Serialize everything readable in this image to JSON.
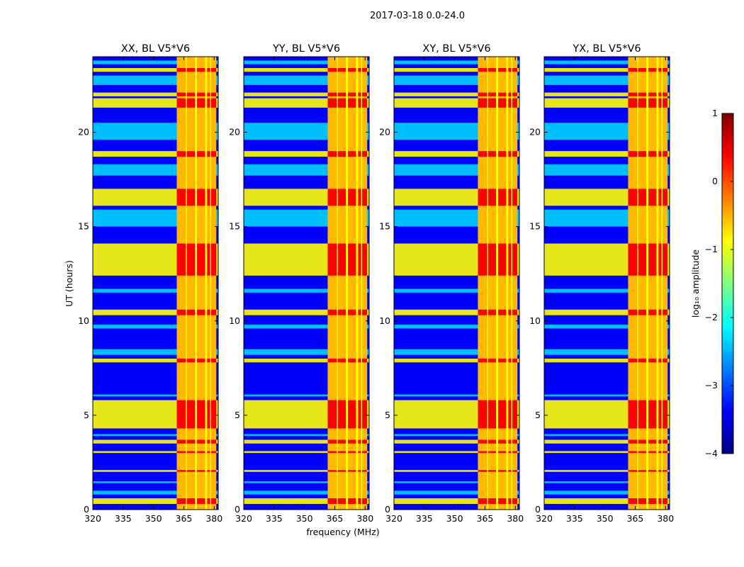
{
  "chart_data": {
    "type": "heatmap",
    "suptitle": "2017-03-18 0.0-24.0",
    "panels": [
      {
        "title": "XX, BL V5*V6",
        "id": "xx"
      },
      {
        "title": "YY, BL V5*V6",
        "id": "yy"
      },
      {
        "title": "XY, BL V5*V6",
        "id": "xy"
      },
      {
        "title": "YX, BL V5*V6",
        "id": "yx"
      }
    ],
    "xlabel": "frequency (MHz)",
    "ylabel": "UT (hours)",
    "xlim": [
      320,
      382
    ],
    "ylim": [
      0,
      24
    ],
    "xticks": [
      320,
      335,
      350,
      365,
      380
    ],
    "xtick_labels": [
      "320",
      "335",
      "350",
      "365",
      "380"
    ],
    "yticks": [
      0,
      5,
      10,
      15,
      20
    ],
    "ytick_labels": [
      "0",
      "5",
      "10",
      "15",
      "20"
    ],
    "colorbar": {
      "label": "log₁₀ amplitude",
      "range": [
        -4,
        1
      ],
      "ticks": [
        1,
        0,
        -1,
        -2,
        -3,
        -4
      ],
      "tick_labels": [
        "1",
        "0",
        "−1",
        "−2",
        "−3",
        "−4"
      ],
      "colormap": "jet",
      "colors": [
        "#00007f",
        "#0000ff",
        "#007fff",
        "#00ffff",
        "#7fff7f",
        "#ffff00",
        "#ff7f00",
        "#ff0000",
        "#7f0000"
      ]
    },
    "background_level": -3.5,
    "rfi_band_mhz": [
      361.5,
      381
    ],
    "rfi_channels_mhz": [
      [
        361.5,
        366
      ],
      [
        366.5,
        370.5
      ],
      [
        371.5,
        375.5
      ],
      [
        376.5,
        378
      ],
      [
        378.5,
        381
      ]
    ],
    "bright_time_bands_hours": [
      [
        0.3,
        0.6
      ],
      [
        2.0,
        2.1
      ],
      [
        3.0,
        3.1
      ],
      [
        3.5,
        3.7
      ],
      [
        4.3,
        5.8
      ],
      [
        7.8,
        8.0
      ],
      [
        10.3,
        10.6
      ],
      [
        12.4,
        14.1
      ],
      [
        16.1,
        17.0
      ],
      [
        18.7,
        19.0
      ],
      [
        21.3,
        21.8
      ],
      [
        21.9,
        22.1
      ],
      [
        23.2,
        23.4
      ]
    ],
    "faint_time_bands_hours": [
      [
        0.8,
        1.0
      ],
      [
        1.4,
        1.5
      ],
      [
        3.9,
        4.0
      ],
      [
        6.0,
        6.1
      ],
      [
        8.2,
        8.5
      ],
      [
        9.6,
        9.8
      ],
      [
        11.5,
        11.7
      ],
      [
        15.0,
        15.9
      ],
      [
        17.7,
        18.3
      ],
      [
        19.6,
        20.5
      ],
      [
        22.5,
        23.0
      ],
      [
        23.6,
        23.8
      ]
    ]
  }
}
